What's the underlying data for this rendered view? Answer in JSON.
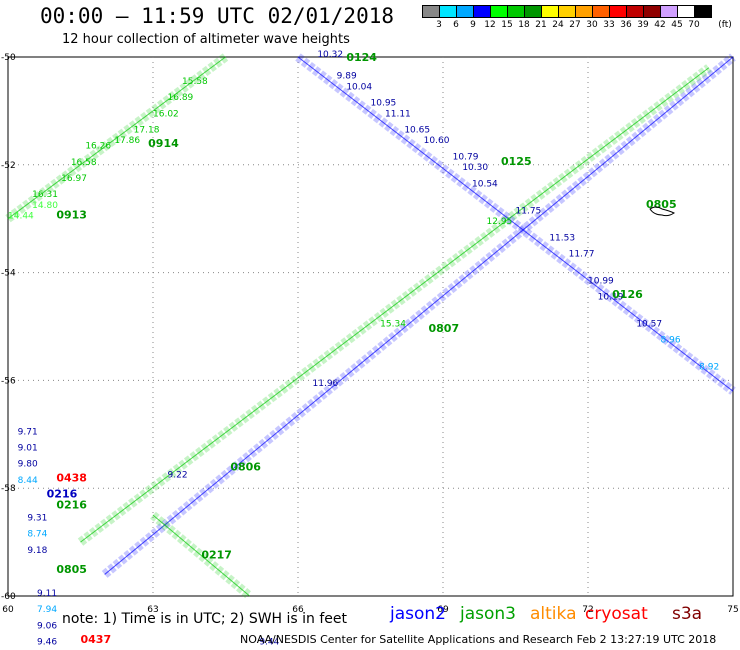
{
  "header": {
    "title": "00:00 – 11:59 UTC 02/01/2018",
    "subtitle": "12 hour collection of altimeter wave heights"
  },
  "legend": {
    "unit": "(ft)",
    "bins": [
      {
        "label": "3",
        "color": "#888888"
      },
      {
        "label": "6",
        "color": "#00e5ff"
      },
      {
        "label": "9",
        "color": "#00a8ff"
      },
      {
        "label": "12",
        "color": "#0000ff"
      },
      {
        "label": "15",
        "color": "#00ff00"
      },
      {
        "label": "18",
        "color": "#00c800"
      },
      {
        "label": "21",
        "color": "#009600"
      },
      {
        "label": "24",
        "color": "#ffff00"
      },
      {
        "label": "27",
        "color": "#ffd000"
      },
      {
        "label": "30",
        "color": "#ffa000"
      },
      {
        "label": "33",
        "color": "#ff6000"
      },
      {
        "label": "36",
        "color": "#ff0000"
      },
      {
        "label": "39",
        "color": "#c00000"
      },
      {
        "label": "42",
        "color": "#900000"
      },
      {
        "label": "45",
        "color": "#d0a0ff"
      },
      {
        "label": "70",
        "color": "#ffffff"
      },
      {
        "label": "",
        "color": "#000000"
      }
    ]
  },
  "map": {
    "lon_ticks": [
      "60",
      "63",
      "66",
      "69",
      "72",
      "75"
    ],
    "lat_ticks": [
      "-50",
      "-52",
      "-54",
      "-56",
      "-58",
      "-60"
    ],
    "lon_range": [
      60,
      75
    ],
    "lat_range": [
      -60,
      -50
    ]
  },
  "tracks": [
    {
      "sat": "jason2",
      "color": "#0000ff",
      "start": [
        62.0,
        -59.6
      ],
      "end": [
        75.0,
        -50.0
      ],
      "time": {
        "label": "0805",
        "lon": 73.2,
        "lat": -52.8
      }
    },
    {
      "sat": "jason3",
      "color": "#00c800",
      "start": [
        61.5,
        -59.0
      ],
      "end": [
        74.5,
        -50.2
      ],
      "time": {
        "label": "0807",
        "lon": 68.7,
        "lat": -55.1
      }
    },
    {
      "sat": "jason2",
      "color": "#0000ff",
      "start": [
        66.0,
        -50.0
      ],
      "end": [
        75.0,
        -56.2
      ],
      "time": {
        "label": "0125",
        "lon": 70.2,
        "lat": -52.0
      }
    },
    {
      "sat": "jason3",
      "color": "#00c800",
      "start": [
        60.0,
        -53.0
      ],
      "end": [
        64.5,
        -50.0
      ],
      "time": {
        "label": "0913",
        "lon": 61.0,
        "lat": -53.0
      }
    },
    {
      "sat": "jason3",
      "color": "#00c800",
      "start": [
        63.0,
        -58.5
      ],
      "end": [
        65.0,
        -60.0
      ],
      "time": {
        "label": "0217",
        "lon": 64.0,
        "lat": -59.3
      }
    }
  ],
  "track_labels": [
    {
      "text": "0124",
      "color": "#009600",
      "lon": 67.0,
      "lat": -50.0
    },
    {
      "text": "0914",
      "color": "#009600",
      "lon": 62.9,
      "lat": -51.6
    },
    {
      "text": "0126",
      "color": "#009600",
      "lon": 72.5,
      "lat": -54.4
    },
    {
      "text": "0806",
      "color": "#009600",
      "lon": 64.6,
      "lat": -57.6
    },
    {
      "text": "0438",
      "color": "#ff0000",
      "lon": 61.0,
      "lat": -57.8
    },
    {
      "text": "0216",
      "color": "#0000c0",
      "lon": 60.8,
      "lat": -58.1
    },
    {
      "text": "0216",
      "color": "#009600",
      "lon": 61.0,
      "lat": -58.3
    },
    {
      "text": "0805",
      "color": "#009600",
      "lon": 61.0,
      "lat": -59.5
    },
    {
      "text": "0437",
      "color": "#ff0000",
      "lon": 61.5,
      "lat": -60.8
    }
  ],
  "sample_values": [
    {
      "text": "10.32",
      "lon": 66.4,
      "lat": -50.0,
      "color": "#0000a0"
    },
    {
      "text": "9.89",
      "lon": 66.8,
      "lat": -50.4,
      "color": "#0000a0"
    },
    {
      "text": "10.04",
      "lon": 67.0,
      "lat": -50.6,
      "color": "#0000a0"
    },
    {
      "text": "10.95",
      "lon": 67.5,
      "lat": -50.9,
      "color": "#0000a0"
    },
    {
      "text": "11.11",
      "lon": 67.8,
      "lat": -51.1,
      "color": "#0000a0"
    },
    {
      "text": "10.65",
      "lon": 68.2,
      "lat": -51.4,
      "color": "#0000a0"
    },
    {
      "text": "10.60",
      "lon": 68.6,
      "lat": -51.6,
      "color": "#0000a0"
    },
    {
      "text": "10.79",
      "lon": 69.2,
      "lat": -51.9,
      "color": "#0000a0"
    },
    {
      "text": "10.30",
      "lon": 69.4,
      "lat": -52.1,
      "color": "#0000a0"
    },
    {
      "text": "10.54",
      "lon": 69.6,
      "lat": -52.4,
      "color": "#0000a0"
    },
    {
      "text": "11.75",
      "lon": 70.5,
      "lat": -52.9,
      "color": "#0000a0"
    },
    {
      "text": "11.53",
      "lon": 71.2,
      "lat": -53.4,
      "color": "#0000a0"
    },
    {
      "text": "11.77",
      "lon": 71.6,
      "lat": -53.7,
      "color": "#0000a0"
    },
    {
      "text": "10.99",
      "lon": 72.0,
      "lat": -54.2,
      "color": "#0000a0"
    },
    {
      "text": "10.19",
      "lon": 72.2,
      "lat": -54.5,
      "color": "#0000a0"
    },
    {
      "text": "10.57",
      "lon": 73.0,
      "lat": -55.0,
      "color": "#0000a0"
    },
    {
      "text": "8.96",
      "lon": 73.5,
      "lat": -55.3,
      "color": "#00a8ff"
    },
    {
      "text": "8.92",
      "lon": 74.3,
      "lat": -55.8,
      "color": "#00a8ff"
    },
    {
      "text": "11.96",
      "lon": 66.3,
      "lat": -56.1,
      "color": "#0000a0"
    },
    {
      "text": "9.22",
      "lon": 63.3,
      "lat": -57.8,
      "color": "#0000a0"
    },
    {
      "text": "15.34",
      "lon": 67.7,
      "lat": -55.0,
      "color": "#00c800"
    },
    {
      "text": "12.95",
      "lon": 69.9,
      "lat": -53.1,
      "color": "#00c800"
    },
    {
      "text": "15.58",
      "lon": 63.6,
      "lat": -50.5,
      "color": "#00c800"
    },
    {
      "text": "16.89",
      "lon": 63.3,
      "lat": -50.8,
      "color": "#00c800"
    },
    {
      "text": "16.02",
      "lon": 63.0,
      "lat": -51.1,
      "color": "#00c800"
    },
    {
      "text": "17.18",
      "lon": 62.6,
      "lat": -51.4,
      "color": "#00c800"
    },
    {
      "text": "17.86",
      "lon": 62.2,
      "lat": -51.6,
      "color": "#00c800"
    },
    {
      "text": "16.26",
      "lon": 61.6,
      "lat": -51.7,
      "color": "#00c800"
    },
    {
      "text": "16.58",
      "lon": 61.3,
      "lat": -52.0,
      "color": "#00c800"
    },
    {
      "text": "16.97",
      "lon": 61.1,
      "lat": -52.3,
      "color": "#00c800"
    },
    {
      "text": "16.31",
      "lon": 60.5,
      "lat": -52.6,
      "color": "#00c800"
    },
    {
      "text": "14.80",
      "lon": 60.5,
      "lat": -52.8,
      "color": "#40ff40"
    },
    {
      "text": "14.44",
      "lon": 60.0,
      "lat": -53.0,
      "color": "#40ff40"
    },
    {
      "text": "9.71",
      "lon": 60.2,
      "lat": -57.0,
      "color": "#0000a0"
    },
    {
      "text": "9.01",
      "lon": 60.2,
      "lat": -57.3,
      "color": "#0000a0"
    },
    {
      "text": "9.80",
      "lon": 60.2,
      "lat": -57.6,
      "color": "#0000a0"
    },
    {
      "text": "8.44",
      "lon": 60.2,
      "lat": -57.9,
      "color": "#00a8ff"
    },
    {
      "text": "9.31",
      "lon": 60.4,
      "lat": -58.6,
      "color": "#0000a0"
    },
    {
      "text": "8.74",
      "lon": 60.4,
      "lat": -58.9,
      "color": "#00a8ff"
    },
    {
      "text": "9.18",
      "lon": 60.4,
      "lat": -59.2,
      "color": "#0000a0"
    },
    {
      "text": "9.11",
      "lon": 60.6,
      "lat": -60.0,
      "color": "#0000a0"
    },
    {
      "text": "7.94",
      "lon": 60.6,
      "lat": -60.3,
      "color": "#00a8ff"
    },
    {
      "text": "9.06",
      "lon": 60.6,
      "lat": -60.6,
      "color": "#0000a0"
    },
    {
      "text": "9.46",
      "lon": 60.6,
      "lat": -60.9,
      "color": "#0000a0"
    },
    {
      "text": "9.44",
      "lon": 65.2,
      "lat": -60.9,
      "color": "#0000a0"
    }
  ],
  "note": "note: 1) Time is in UTC; 2) SWH is in feet",
  "satellites": [
    {
      "name": "jason2",
      "color": "#0000ff"
    },
    {
      "name": "jason3",
      "color": "#00a000"
    },
    {
      "name": "altika",
      "color": "#ff8c00"
    },
    {
      "name": "cryosat",
      "color": "#ff0000"
    },
    {
      "name": "s3a",
      "color": "#800000"
    }
  ],
  "footer": "NOAA/NESDIS Center for Satellite Applications and Research    Feb  2 13:27:19 UTC 2018"
}
